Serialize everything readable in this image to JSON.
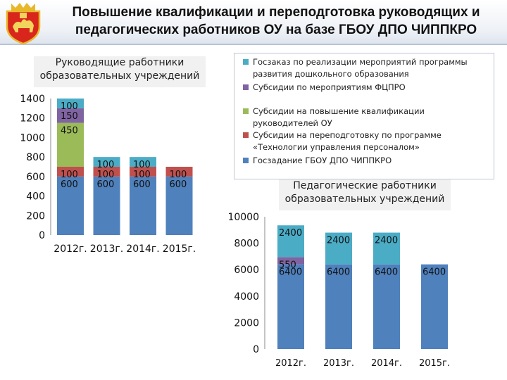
{
  "title": {
    "line1": "Повышение квалификации и переподготовка руководящих и",
    "line2": "педагогических работников ОУ на базе ГБОУ ДПО ЧИППКРО"
  },
  "colors": {
    "goszakaz_doshkol": "#4bacc6",
    "subsidii_fcpro": "#8064a2",
    "subsidii_kvalif": "#9bbb59",
    "subsidii_perepodg": "#c0504d",
    "goszadanie": "#4f81bd"
  },
  "legend": {
    "items": [
      {
        "key": "goszakaz_doshkol",
        "label": "Госзаказ по реализации мероприятий программы развития дошкольного образования"
      },
      {
        "key": "subsidii_fcpro",
        "label": "Субсидии по мероприятиям ФЦПРО"
      },
      {
        "key": "subsidii_kvalif",
        "label": "Субсидии на повышение квалификации руководителей ОУ"
      },
      {
        "key": "subsidii_perepodg",
        "label": "Субсидии на переподготовку по программе «Технологии управления персоналом»"
      },
      {
        "key": "goszadanie",
        "label": "Госзадание ГБОУ ДПО ЧИППКРО"
      }
    ]
  },
  "chart_data": [
    {
      "type": "bar",
      "stacked": true,
      "title": "Руководящие работники образовательных учреждений",
      "categories": [
        "2012г.",
        "2013г.",
        "2014г.",
        "2015г."
      ],
      "ylim": [
        0,
        1400
      ],
      "yticks": [
        0,
        200,
        400,
        600,
        800,
        1000,
        1200,
        1400
      ],
      "series": [
        {
          "key": "goszadanie",
          "name": "Госзадание ГБОУ ДПО ЧИППКРО",
          "values": [
            600,
            600,
            600,
            600
          ]
        },
        {
          "key": "subsidii_perepodg",
          "name": "Субсидии на переподготовку по программе «Технологии управления персоналом»",
          "values": [
            100,
            100,
            100,
            100
          ]
        },
        {
          "key": "subsidii_kvalif",
          "name": "Субсидии на повышение квалификации руководителей ОУ",
          "values": [
            450,
            null,
            null,
            null
          ]
        },
        {
          "key": "subsidii_fcpro",
          "name": "Субсидии по мероприятиям ФЦПРО",
          "values": [
            150,
            null,
            null,
            null
          ]
        },
        {
          "key": "goszakaz_doshkol",
          "name": "Госзаказ по реализации мероприятий программы развития дошкольного образования",
          "values": [
            100,
            100,
            100,
            null
          ]
        }
      ],
      "grid": false,
      "legend": "right"
    },
    {
      "type": "bar",
      "stacked": true,
      "title": "Педагогические работники образовательных учреждений",
      "categories": [
        "2012г.",
        "2013г.",
        "2014г.",
        "2015г."
      ],
      "ylim": [
        0,
        10000
      ],
      "yticks": [
        0,
        2000,
        4000,
        6000,
        8000,
        10000
      ],
      "series": [
        {
          "key": "goszadanie",
          "name": "Госзадание ГБОУ ДПО ЧИППКРО",
          "values": [
            6400,
            6400,
            6400,
            6400
          ]
        },
        {
          "key": "subsidii_fcpro",
          "name": "Субсидии по мероприятиям ФЦПРО",
          "values": [
            550,
            null,
            null,
            null
          ]
        },
        {
          "key": "goszakaz_doshkol",
          "name": "Госзаказ по реализации мероприятий программы развития дошкольного образования",
          "values": [
            2400,
            2400,
            2400,
            null
          ]
        }
      ],
      "grid": false,
      "legend": "right"
    }
  ]
}
